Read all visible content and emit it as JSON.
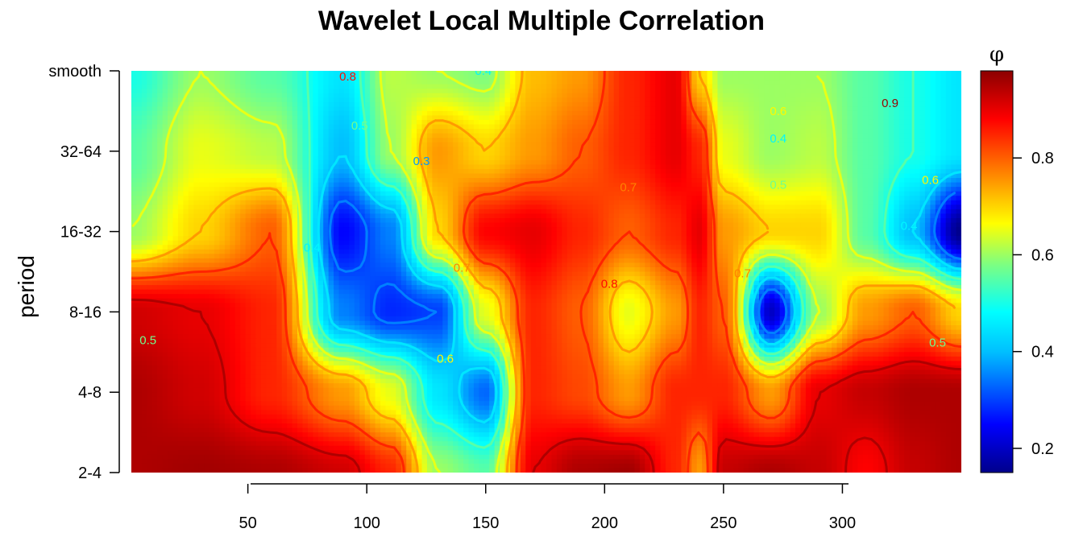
{
  "chart_data": {
    "type": "heatmap",
    "title": "Wavelet Local Multiple Correlation",
    "xlabel": "",
    "ylabel": "period",
    "xlim": [
      1,
      350
    ],
    "x_ticks": [
      50,
      100,
      150,
      200,
      250,
      300
    ],
    "y_ticks": [
      "2-4",
      "4-8",
      "8-16",
      "16-32",
      "32-64",
      "smooth"
    ],
    "colorbar": {
      "label": "φ",
      "range": [
        0.15,
        0.98
      ],
      "ticks": [
        0.2,
        0.4,
        0.6,
        0.8
      ],
      "colors": [
        "#00008B",
        "#0000FF",
        "#00BFFF",
        "#00FFFF",
        "#7FFF7F",
        "#FFFF00",
        "#FF7F00",
        "#FF0000",
        "#8B0000"
      ]
    },
    "levels": [
      {
        "name": "smooth",
        "x": [
          1,
          30,
          60,
          90,
          110,
          130,
          150,
          170,
          190,
          210,
          230,
          240,
          250,
          270,
          290,
          310,
          330,
          350
        ],
        "values": [
          0.95,
          0.96,
          0.95,
          0.92,
          0.85,
          0.6,
          0.55,
          0.9,
          0.95,
          0.96,
          0.85,
          0.75,
          0.93,
          0.95,
          0.93,
          0.88,
          0.93,
          0.95
        ]
      },
      {
        "name": "32-64",
        "x": [
          1,
          30,
          60,
          90,
          110,
          130,
          150,
          170,
          190,
          210,
          230,
          240,
          250,
          270,
          290,
          310,
          330,
          350
        ],
        "values": [
          0.95,
          0.92,
          0.85,
          0.75,
          0.65,
          0.45,
          0.33,
          0.85,
          0.82,
          0.75,
          0.85,
          0.85,
          0.85,
          0.75,
          0.9,
          0.93,
          0.95,
          0.95
        ]
      },
      {
        "name": "16-32",
        "x": [
          1,
          30,
          60,
          90,
          110,
          130,
          150,
          170,
          190,
          210,
          230,
          240,
          250,
          270,
          290,
          310,
          330,
          350
        ],
        "values": [
          0.92,
          0.9,
          0.85,
          0.35,
          0.28,
          0.3,
          0.65,
          0.85,
          0.8,
          0.65,
          0.75,
          0.85,
          0.8,
          0.2,
          0.6,
          0.75,
          0.8,
          0.7
        ]
      },
      {
        "name": "8-16",
        "x": [
          1,
          30,
          60,
          90,
          110,
          130,
          150,
          170,
          190,
          210,
          230,
          240,
          250,
          270,
          290,
          310,
          330,
          350
        ],
        "values": [
          0.6,
          0.7,
          0.8,
          0.25,
          0.35,
          0.7,
          0.88,
          0.9,
          0.85,
          0.8,
          0.85,
          0.9,
          0.75,
          0.7,
          0.7,
          0.55,
          0.4,
          0.15
        ]
      },
      {
        "name": "4-8",
        "x": [
          1,
          30,
          60,
          90,
          110,
          130,
          150,
          170,
          190,
          210,
          230,
          240,
          250,
          270,
          290,
          310,
          330,
          350
        ],
        "values": [
          0.55,
          0.65,
          0.62,
          0.4,
          0.6,
          0.75,
          0.7,
          0.75,
          0.8,
          0.85,
          0.9,
          0.85,
          0.65,
          0.6,
          0.62,
          0.55,
          0.5,
          0.45
        ]
      },
      {
        "name": "2-4",
        "x": [
          1,
          30,
          60,
          90,
          110,
          130,
          150,
          170,
          190,
          210,
          230,
          240,
          250,
          270,
          290,
          310,
          330,
          350
        ],
        "values": [
          0.5,
          0.6,
          0.55,
          0.45,
          0.62,
          0.6,
          0.58,
          0.72,
          0.75,
          0.85,
          0.9,
          0.7,
          0.6,
          0.6,
          0.6,
          0.55,
          0.5,
          0.45
        ]
      }
    ],
    "contour_labels": [
      {
        "text": "0.9",
        "x": 65,
        "level": 5.55
      },
      {
        "text": "0.8",
        "x": 92,
        "level": 4.93
      },
      {
        "text": "0.6",
        "x": 151,
        "level": 5.42
      },
      {
        "text": "0.4",
        "x": 149,
        "level": 5.0
      },
      {
        "text": "0.9",
        "x": 170,
        "level": 5.4
      },
      {
        "text": "0.5",
        "x": 97,
        "level": 4.32
      },
      {
        "text": "0.3",
        "x": 123,
        "level": 3.88
      },
      {
        "text": "0.8",
        "x": 244,
        "level": 5.83
      },
      {
        "text": "0.7",
        "x": 210,
        "level": 3.55
      },
      {
        "text": "0.6",
        "x": 273,
        "level": 4.5
      },
      {
        "text": "0.4",
        "x": 273,
        "level": 4.16
      },
      {
        "text": "0.5",
        "x": 273,
        "level": 3.58
      },
      {
        "text": "0.9",
        "x": 320,
        "level": 4.6
      },
      {
        "text": "0.6",
        "x": 337,
        "level": 3.64
      },
      {
        "text": "0.4",
        "x": 328,
        "level": 3.07
      },
      {
        "text": "0.7",
        "x": 258,
        "level": 2.48
      },
      {
        "text": "0.8",
        "x": 202,
        "level": 2.35
      },
      {
        "text": "0.7",
        "x": 140,
        "level": 2.55
      },
      {
        "text": "0.4",
        "x": 77,
        "level": 2.8
      },
      {
        "text": "0.6",
        "x": 133,
        "level": 1.42
      },
      {
        "text": "0.5",
        "x": 340,
        "level": 1.62
      },
      {
        "text": "0.5",
        "x": 8,
        "level": 1.65
      }
    ]
  }
}
